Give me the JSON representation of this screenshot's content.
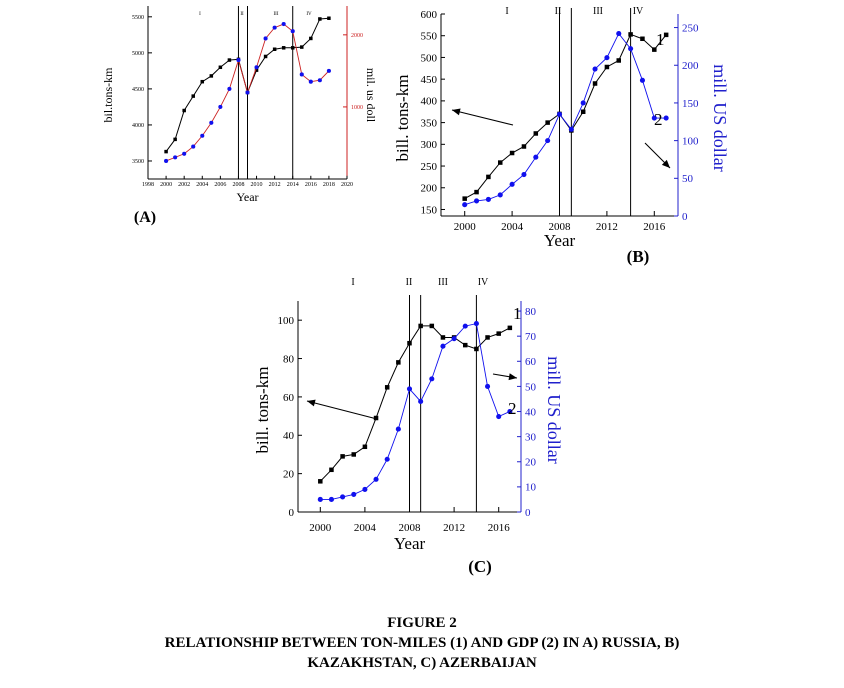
{
  "figure": {
    "caption_line1": "FIGURE 2",
    "caption_line2": "RELATIONSHIP BETWEEN TON-MILES (1) AND GDP (2) IN A) RUSSIA, B)",
    "caption_line3": "KAZAKHSTAN, C) AZERBAIJAN"
  },
  "colors": {
    "series1": "#000000",
    "series2": "#1010ee",
    "series2_russia": "#cc2222",
    "right_axis_russia": "#cc2222",
    "right_axis": "#2020cc"
  },
  "chart_data": [
    {
      "type": "line",
      "panel_label": "(A)",
      "title": "",
      "xlabel": "Year",
      "ylabel_left": "bil.tons-km",
      "ylabel_right": "mil. us doll",
      "xlim": [
        1998,
        2020
      ],
      "x_ticks": [
        "1998",
        "2000",
        "2002",
        "2004",
        "2006",
        "2008",
        "2010",
        "2012",
        "2014",
        "2016",
        "2018",
        "2020"
      ],
      "ylim_left": [
        3250,
        5650
      ],
      "y_ticks_left": [
        "3500",
        "4000",
        "4500",
        "5000",
        "5500"
      ],
      "ylim_right": [
        0,
        2400
      ],
      "y_ticks_right": [
        "1000",
        "2000"
      ],
      "period_labels": [
        "I",
        "II",
        "III",
        "IV"
      ],
      "period_lines_x": [
        2008,
        2009,
        2014
      ],
      "series": [
        {
          "axis": "left",
          "x": [
            2000,
            2001,
            2002,
            2003,
            2004,
            2005,
            2006,
            2007,
            2008,
            2009,
            2010,
            2011,
            2012,
            2013,
            2014,
            2015,
            2016,
            2017,
            2018
          ],
          "values": [
            3630,
            3800,
            4200,
            4400,
            4600,
            4680,
            4800,
            4900,
            4910,
            4450,
            4760,
            4950,
            5050,
            5070,
            5070,
            5080,
            5200,
            5470,
            5480
          ]
        },
        {
          "axis": "right",
          "x": [
            2000,
            2001,
            2002,
            2003,
            2004,
            2005,
            2006,
            2007,
            2008,
            2009,
            2010,
            2011,
            2012,
            2013,
            2014,
            2015,
            2016,
            2017,
            2018
          ],
          "values": [
            250,
            300,
            350,
            450,
            600,
            780,
            1000,
            1250,
            1650,
            1200,
            1550,
            1950,
            2100,
            2150,
            2050,
            1450,
            1350,
            1370,
            1500
          ]
        }
      ]
    },
    {
      "type": "line",
      "panel_label": "(B)",
      "title": "",
      "xlabel": "Year",
      "ylabel_left": "bill. tons-km",
      "ylabel_right": "mill. US dollar",
      "xlim": [
        1998,
        2018
      ],
      "x_ticks": [
        "2000",
        "2004",
        "2008",
        "2012",
        "2016"
      ],
      "ylim_left": [
        135,
        600
      ],
      "y_ticks_left": [
        "150",
        "200",
        "250",
        "300",
        "350",
        "400",
        "450",
        "500",
        "550",
        "600"
      ],
      "ylim_right": [
        0,
        268
      ],
      "y_ticks_right": [
        "0",
        "50",
        "100",
        "150",
        "200",
        "250"
      ],
      "period_labels": [
        "I",
        "II",
        "III",
        "IV"
      ],
      "period_lines_x": [
        2008,
        2009,
        2014
      ],
      "series_labels": [
        "1",
        "2"
      ],
      "series": [
        {
          "axis": "left",
          "x": [
            2000,
            2001,
            2002,
            2003,
            2004,
            2005,
            2006,
            2007,
            2008,
            2009,
            2010,
            2011,
            2012,
            2013,
            2014,
            2015,
            2016,
            2017
          ],
          "values": [
            175,
            190,
            225,
            258,
            280,
            295,
            325,
            350,
            370,
            332,
            375,
            440,
            478,
            493,
            553,
            543,
            518,
            552
          ]
        },
        {
          "axis": "right",
          "x": [
            2000,
            2001,
            2002,
            2003,
            2004,
            2005,
            2006,
            2007,
            2008,
            2009,
            2010,
            2011,
            2012,
            2013,
            2014,
            2015,
            2016,
            2017
          ],
          "values": [
            15,
            20,
            22,
            28,
            42,
            55,
            78,
            100,
            135,
            115,
            150,
            195,
            210,
            242,
            222,
            180,
            130,
            130
          ]
        }
      ]
    },
    {
      "type": "line",
      "panel_label": "(C)",
      "title": "",
      "xlabel": "Year",
      "ylabel_left": "bill. tons-km",
      "ylabel_right": "mill. US dollar",
      "xlim": [
        1998,
        2018
      ],
      "x_ticks": [
        "2000",
        "2004",
        "2008",
        "2012",
        "2016"
      ],
      "ylim_left": [
        0,
        110
      ],
      "y_ticks_left": [
        "0",
        "20",
        "40",
        "60",
        "80",
        "100"
      ],
      "ylim_right": [
        0,
        84
      ],
      "y_ticks_right": [
        "0",
        "10",
        "20",
        "30",
        "40",
        "50",
        "60",
        "70",
        "80"
      ],
      "period_labels": [
        "I",
        "II",
        "III",
        "IV"
      ],
      "period_lines_x": [
        2008,
        2009,
        2014
      ],
      "series_labels": [
        "1",
        "2"
      ],
      "series": [
        {
          "axis": "left",
          "x": [
            2000,
            2001,
            2002,
            2003,
            2004,
            2005,
            2006,
            2007,
            2008,
            2009,
            2010,
            2011,
            2012,
            2013,
            2014,
            2015,
            2016,
            2017
          ],
          "values": [
            16,
            22,
            29,
            30,
            34,
            49,
            65,
            78,
            88,
            97,
            97,
            91,
            91,
            87,
            85,
            91,
            93,
            96
          ]
        },
        {
          "axis": "right",
          "x": [
            2000,
            2001,
            2002,
            2003,
            2004,
            2005,
            2006,
            2007,
            2008,
            2009,
            2010,
            2011,
            2012,
            2013,
            2014,
            2015,
            2016,
            2017
          ],
          "values": [
            5,
            5,
            6,
            7,
            9,
            13,
            21,
            33,
            49,
            44,
            53,
            66,
            69,
            74,
            75,
            50,
            38,
            40
          ]
        }
      ]
    }
  ]
}
